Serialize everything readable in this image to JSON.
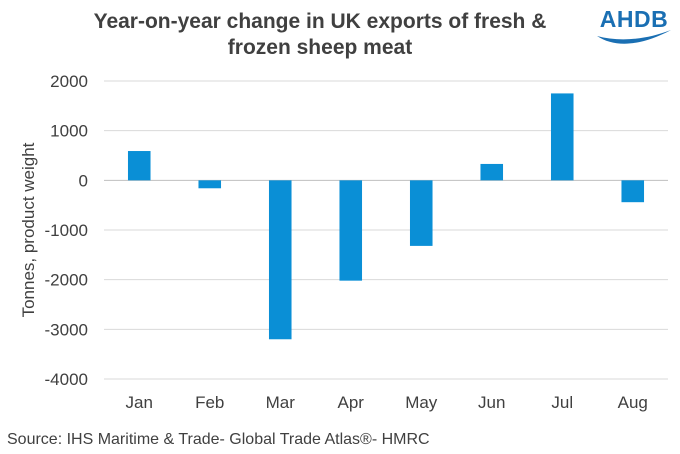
{
  "title": "Year-on-year change in UK exports of fresh & frozen sheep meat",
  "logo": {
    "text": "AHDB",
    "icon": "wave-swoosh-icon",
    "color": "#1a6fb3"
  },
  "source": "Source: IHS Maritime & Trade- Global Trade Atlas®- HMRC",
  "chart_data": {
    "type": "bar",
    "title": "Year-on-year change in UK exports of fresh & frozen sheep meat",
    "xlabel": "",
    "ylabel": "Tonnes, product weight",
    "categories": [
      "Jan",
      "Feb",
      "Mar",
      "Apr",
      "May",
      "Jun",
      "Jul",
      "Aug"
    ],
    "values": [
      590,
      -160,
      -3200,
      -2020,
      -1320,
      330,
      1750,
      -440
    ],
    "ylim": [
      -4000,
      2000
    ],
    "yticks": [
      2000,
      1000,
      0,
      -1000,
      -2000,
      -3000,
      -4000
    ],
    "ytick_labels": [
      "2000",
      "1000",
      "0",
      "-1000",
      "-2000",
      "-3000",
      "-4000"
    ],
    "grid": true,
    "legend": "none",
    "bar_color": "#0a8fd6"
  }
}
